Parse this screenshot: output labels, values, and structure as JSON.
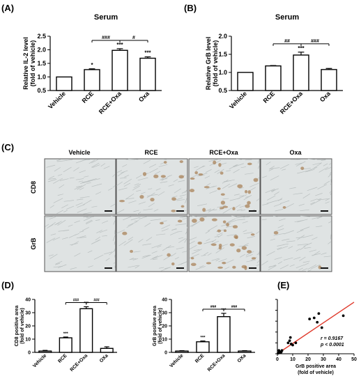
{
  "panels": {
    "A": "(A)",
    "B": "(B)",
    "C": "(C)",
    "D": "(D)",
    "E": "(E)"
  },
  "micrographs": {
    "columns": [
      "Vehicle",
      "RCE",
      "RCE+Oxa",
      "Oxa"
    ],
    "rows": [
      "CD8",
      "GrB"
    ],
    "stain_color": "#a9835a",
    "background_color": "#dfe3e3"
  },
  "chart_data": [
    {
      "type": "bar",
      "panel": "A",
      "title": "Serum",
      "ylabel": "Relative IL-2 level\n(fold of vehicle)",
      "categories": [
        "Vehicle",
        "RCE",
        "RCE+Oxa",
        "Oxa"
      ],
      "values": [
        1.0,
        1.27,
        1.98,
        1.69
      ],
      "errors": [
        0.0,
        0.03,
        0.06,
        0.05
      ],
      "ylim": [
        0.5,
        2.5
      ],
      "yticks": [
        "0.5",
        "1.0",
        "1.5",
        "2.0",
        "2.5"
      ],
      "stars": [
        "",
        "*",
        "***",
        "***"
      ],
      "brackets": [
        {
          "from": 1,
          "to": 2,
          "label": "###"
        },
        {
          "from": 2,
          "to": 3,
          "label": "#"
        }
      ]
    },
    {
      "type": "bar",
      "panel": "B",
      "title": "Serum",
      "ylabel": "Relative GrB level\n(fold of vehicle)",
      "categories": [
        "Vehicle",
        "RCE",
        "RCE+Oxa",
        "Oxa"
      ],
      "values": [
        1.0,
        1.18,
        1.48,
        1.08
      ],
      "errors": [
        0.0,
        0.01,
        0.08,
        0.03
      ],
      "ylim": [
        0.5,
        2.0
      ],
      "yticks": [
        "0.5",
        "1.0",
        "1.5",
        "2.0"
      ],
      "stars": [
        "",
        "",
        "***",
        ""
      ],
      "brackets": [
        {
          "from": 1,
          "to": 2,
          "label": "##"
        },
        {
          "from": 2,
          "to": 3,
          "label": "###"
        }
      ]
    },
    {
      "type": "bar",
      "panel": "D-left",
      "ylabel": "CD8 positive area\n(fold of vehicle)",
      "categories": [
        "Vehicle",
        "RCE",
        "RCE+Oxa",
        "OXa"
      ],
      "values": [
        1.0,
        11.0,
        33.0,
        3.0
      ],
      "errors": [
        0.5,
        0.6,
        1.5,
        1.2
      ],
      "ylim": [
        0,
        40
      ],
      "yticks": [
        "0",
        "10",
        "20",
        "30",
        "40"
      ],
      "stars": [
        "",
        "***",
        "***",
        ""
      ],
      "brackets": [
        {
          "from": 1,
          "to": 2,
          "label": "###"
        },
        {
          "from": 2,
          "to": 3,
          "label": "###"
        }
      ]
    },
    {
      "type": "bar",
      "panel": "D-right",
      "ylabel": "GrB positive area\n(fold of vehicle)",
      "categories": [
        "Vehicle",
        "RCE",
        "RCE+Oxa",
        "OXa"
      ],
      "values": [
        1.0,
        8.0,
        27.0,
        1.0
      ],
      "errors": [
        0.3,
        0.6,
        2.5,
        0.3
      ],
      "ylim": [
        0,
        40
      ],
      "yticks": [
        "0",
        "10",
        "20",
        "30",
        "40"
      ],
      "stars": [
        "",
        "***",
        "***",
        ""
      ],
      "brackets": [
        {
          "from": 1,
          "to": 2,
          "label": "###"
        },
        {
          "from": 2,
          "to": 3,
          "label": "###"
        }
      ]
    },
    {
      "type": "scatter",
      "panel": "E",
      "xlabel": "GrB positive area\n(fold of vehicle)",
      "ylabel": "CD8 positive area\n(fold of vehicle)",
      "xlim": [
        0,
        50
      ],
      "ylim": [
        0,
        50
      ],
      "xticks": [
        "0",
        "10",
        "20",
        "30",
        "40",
        "50"
      ],
      "yticks": [
        "0",
        "10",
        "20",
        "30",
        "40",
        "50"
      ],
      "points": [
        [
          0.5,
          0.5
        ],
        [
          1,
          1
        ],
        [
          1.5,
          2
        ],
        [
          2,
          1
        ],
        [
          1,
          3
        ],
        [
          2.5,
          1.5
        ],
        [
          3,
          3
        ],
        [
          7,
          10
        ],
        [
          8,
          12
        ],
        [
          8.5,
          15
        ],
        [
          10,
          8
        ],
        [
          12,
          10
        ],
        [
          9,
          9
        ],
        [
          21,
          32
        ],
        [
          24,
          33
        ],
        [
          26,
          29
        ],
        [
          27,
          37
        ],
        [
          29,
          24
        ],
        [
          43,
          35
        ]
      ],
      "fit": {
        "x": [
          0,
          50
        ],
        "y": [
          -1,
          47.5
        ],
        "color": "#e03a2c"
      },
      "annotation_r": "r = 0.9167",
      "annotation_p": "p < 0.0001"
    }
  ]
}
